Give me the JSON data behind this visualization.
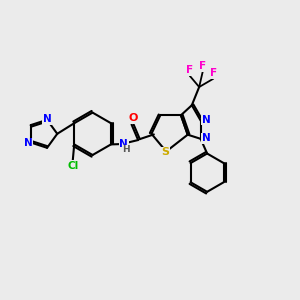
{
  "background_color": "#ebebeb",
  "bond_color": "#000000",
  "atom_colors": {
    "N": "#0000ff",
    "O": "#ff0000",
    "S": "#ccaa00",
    "F": "#ff00cc",
    "Cl": "#00bb00",
    "H": "#555555",
    "C": "#000000"
  },
  "figsize": [
    3.0,
    3.0
  ],
  "dpi": 100
}
